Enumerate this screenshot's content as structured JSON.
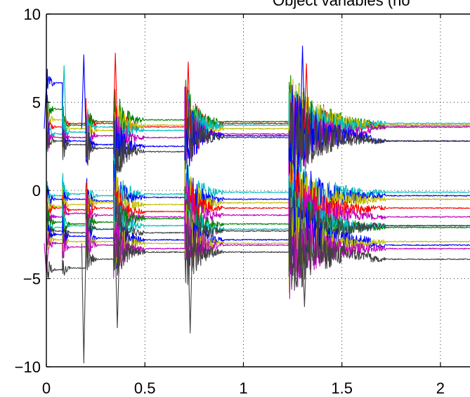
{
  "chart_data": {
    "type": "line",
    "title": "Object variables (no",
    "xlabel": "",
    "ylabel": "",
    "xlim": [
      0,
      2.15
    ],
    "ylim": [
      -10,
      10
    ],
    "x_ticks": [
      {
        "value": 0,
        "label": "0"
      },
      {
        "value": 0.5,
        "label": "0.5"
      },
      {
        "value": 1,
        "label": "1"
      },
      {
        "value": 1.5,
        "label": "1.5"
      },
      {
        "value": 2,
        "label": "2"
      }
    ],
    "y_ticks": [
      {
        "value": 10,
        "label": "10"
      },
      {
        "value": 5,
        "label": "5"
      },
      {
        "value": 0,
        "label": "0"
      },
      {
        "value": -5,
        "label": "−5"
      },
      {
        "value": -10,
        "label": "−10"
      }
    ],
    "grid": "dotted",
    "legend": "none",
    "restart_points": [
      0,
      0.08,
      0.2,
      0.34,
      0.7,
      1.23
    ],
    "bursts": [
      {
        "t0": 0.0,
        "t1": 0.05,
        "amp": 1.3
      },
      {
        "t0": 0.08,
        "t1": 0.12,
        "amp": 1.6
      },
      {
        "t0": 0.2,
        "t1": 0.26,
        "amp": 1.8
      },
      {
        "t0": 0.34,
        "t1": 0.5,
        "amp": 2.4
      },
      {
        "t0": 0.7,
        "t1": 0.9,
        "amp": 2.8
      },
      {
        "t0": 1.23,
        "t1": 1.72,
        "amp": 3.0
      }
    ],
    "series": [
      {
        "color": "#ff0000",
        "values": [
          3.6,
          3.8,
          3.8,
          3.6,
          3.8,
          3.6,
          3.7
        ]
      },
      {
        "color": "#008000",
        "values": [
          4.6,
          3.7,
          3.9,
          4.0,
          3.9,
          4.0,
          3.6
        ]
      },
      {
        "color": "#bfbf00",
        "values": [
          4.0,
          3.5,
          3.4,
          3.7,
          3.5,
          3.8,
          3.7
        ]
      },
      {
        "color": "#00bfbf",
        "values": [
          3.2,
          3.3,
          3.6,
          3.4,
          3.7,
          3.5,
          3.8
        ]
      },
      {
        "color": "#bf00bf",
        "values": [
          3.0,
          3.0,
          3.1,
          3.0,
          3.2,
          3.1,
          3.6
        ]
      },
      {
        "color": "#0000ff",
        "values": [
          6.1,
          2.8,
          2.6,
          2.5,
          3.1,
          3.3,
          2.8
        ]
      },
      {
        "color": "#404040",
        "values": [
          2.8,
          2.6,
          2.4,
          2.2,
          3.0,
          3.0,
          2.8
        ]
      },
      {
        "color": "#00bfbf",
        "values": [
          -0.3,
          -0.2,
          -0.3,
          -0.2,
          -0.1,
          -0.2,
          -0.1
        ]
      },
      {
        "color": "#0000ff",
        "values": [
          -0.5,
          -0.5,
          -0.6,
          -0.4,
          -0.5,
          -0.4,
          -0.3
        ]
      },
      {
        "color": "#bfbf00",
        "values": [
          -0.9,
          -0.8,
          -0.7,
          -0.8,
          -0.7,
          -0.6,
          -0.5
        ]
      },
      {
        "color": "#ff0000",
        "values": [
          -1.0,
          -1.1,
          -1.0,
          -1.2,
          -1.0,
          -1.1,
          -1.0
        ]
      },
      {
        "color": "#bf00bf",
        "values": [
          -1.5,
          -1.3,
          -1.4,
          -1.5,
          -1.4,
          -1.3,
          -1.5
        ]
      },
      {
        "color": "#008000",
        "values": [
          -1.8,
          -1.9,
          -1.8,
          -1.6,
          -1.9,
          -2.0,
          -2.1
        ]
      },
      {
        "color": "#00bfbf",
        "values": [
          -2.1,
          -2.0,
          -2.2,
          -2.0,
          -2.2,
          -2.1,
          -2.0
        ]
      },
      {
        "color": "#404040",
        "values": [
          -2.3,
          -2.4,
          -2.2,
          -2.4,
          -2.3,
          -2.2,
          -2.0
        ]
      },
      {
        "color": "#0000ff",
        "values": [
          -2.5,
          -2.6,
          -2.7,
          -2.8,
          -2.8,
          -2.6,
          -3.1
        ]
      },
      {
        "color": "#bfbf00",
        "values": [
          -2.8,
          -2.9,
          -2.9,
          -3.0,
          -3.0,
          -3.2,
          -2.9
        ]
      },
      {
        "color": "#bf00bf",
        "values": [
          -3.0,
          -3.2,
          -3.1,
          -3.3,
          -3.1,
          -3.3,
          -3.3
        ]
      },
      {
        "color": "#404040",
        "values": [
          -4.5,
          -4.4,
          -3.9,
          -3.5,
          -3.5,
          -3.5,
          -3.9
        ]
      }
    ],
    "spikes": [
      {
        "t": 0.0,
        "v": 6.1,
        "color": "#0000ff"
      },
      {
        "t": 0.0,
        "v": -4.7,
        "color": "#bf00bf"
      },
      {
        "t": 0.09,
        "v": 7.1,
        "color": "#00bfbf"
      },
      {
        "t": 0.19,
        "v": 7.7,
        "color": "#0000ff"
      },
      {
        "t": 0.19,
        "v": -9.8,
        "color": "#404040"
      },
      {
        "t": 0.35,
        "v": 7.8,
        "color": "#ff0000"
      },
      {
        "t": 0.36,
        "v": -7.8,
        "color": "#404040"
      },
      {
        "t": 0.72,
        "v": 7.3,
        "color": "#ff0000"
      },
      {
        "t": 0.73,
        "v": -8.1,
        "color": "#404040"
      },
      {
        "t": 1.3,
        "v": 8.2,
        "color": "#0000ff"
      },
      {
        "t": 1.32,
        "v": 7.2,
        "color": "#ff0000"
      },
      {
        "t": 1.31,
        "v": -6.6,
        "color": "#404040"
      }
    ]
  }
}
